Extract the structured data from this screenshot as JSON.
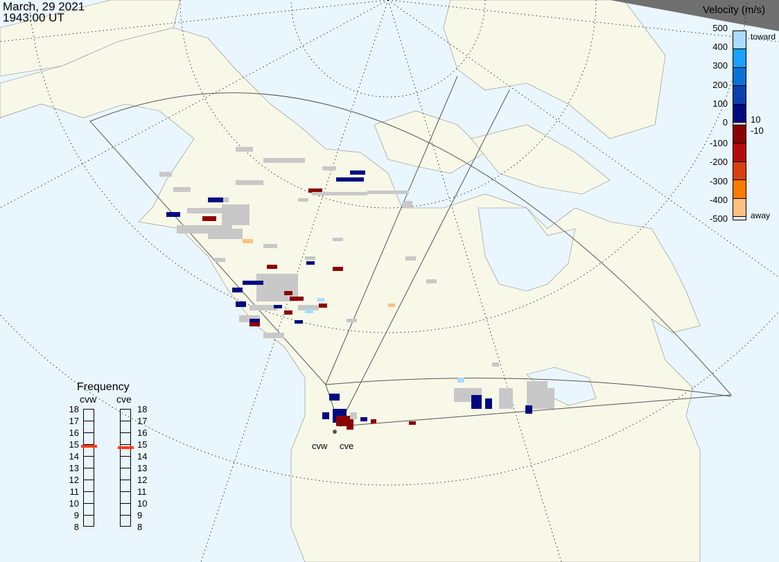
{
  "header": {
    "date": "March, 29 2021",
    "time": "1943:00 UT"
  },
  "velocity_scale": {
    "title": "Velocity (m/s)",
    "ticks": [
      "500",
      "400",
      "300",
      "200",
      "100",
      "0",
      "-100",
      "-200",
      "-300",
      "-400",
      "-500"
    ],
    "toward_label": "toward",
    "away_label": "away",
    "ground_scatter_upper": "10",
    "ground_scatter_lower": "-10",
    "colors": [
      "#a8dcff",
      "#1aa0ff",
      "#0a72d8",
      "#0a3fae",
      "#000a80",
      "#8a0000",
      "#b40a0a",
      "#d84010",
      "#ff7a00",
      "#ffc080"
    ],
    "ground_scatter_color": "#c8c8c8"
  },
  "frequency": {
    "title": "Frequency",
    "unit_ticks": [
      "18",
      "17",
      "16",
      "15",
      "14",
      "13",
      "12",
      "11",
      "10",
      "9",
      "8"
    ],
    "radars": [
      {
        "name": "cvw",
        "value_mhz": 14.8
      },
      {
        "name": "cve",
        "value_mhz": 14.7
      }
    ],
    "marker_color": "#ff3c14"
  },
  "radar_sites": [
    {
      "name": "cvw"
    },
    {
      "name": "cve"
    }
  ],
  "colors": {
    "ocean": "#eaf6fd",
    "land": "#f8f8e8",
    "night_shade": "#707070"
  }
}
